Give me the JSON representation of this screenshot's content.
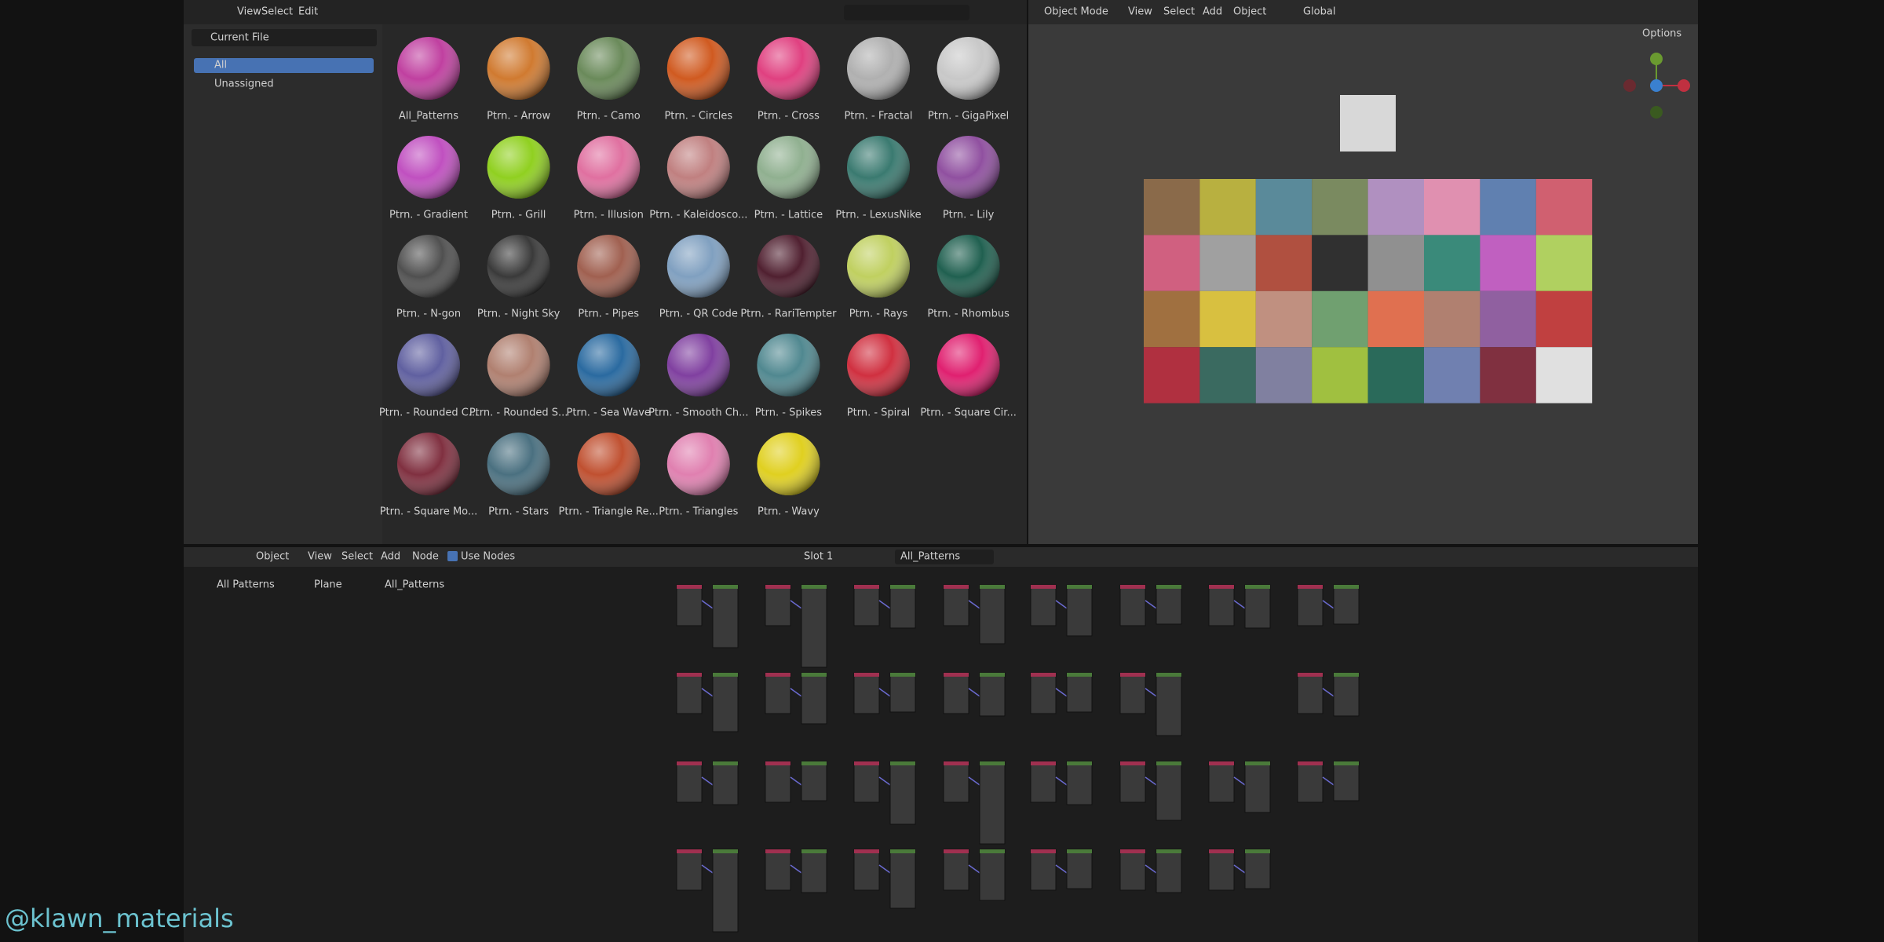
{
  "asset_browser": {
    "menus": [
      "View",
      "Select",
      "Edit"
    ],
    "library": "Current File",
    "catalogs": [
      "All",
      "Unassigned"
    ],
    "items": [
      {
        "label": "All_Patterns",
        "color": "#c040a0"
      },
      {
        "label": "Ptrn. - Arrow",
        "color": "#d07a30"
      },
      {
        "label": "Ptrn. - Camo",
        "color": "#6a8a5a"
      },
      {
        "label": "Ptrn. - Circles",
        "color": "#d05a20"
      },
      {
        "label": "Ptrn. - Cross",
        "color": "#e04080"
      },
      {
        "label": "Ptrn. - Fractal",
        "color": "#b0b0b0"
      },
      {
        "label": "Ptrn. - GigaPixel",
        "color": "#c8c8c8"
      },
      {
        "label": "Ptrn. - Gradient",
        "color": "#c050c0"
      },
      {
        "label": "Ptrn. - Grill",
        "color": "#90d020"
      },
      {
        "label": "Ptrn. - Illusion",
        "color": "#e070a0"
      },
      {
        "label": "Ptrn. - Kaleidosco...",
        "color": "#c08080"
      },
      {
        "label": "Ptrn. - Lattice",
        "color": "#90b090"
      },
      {
        "label": "Ptrn. - LexusNike",
        "color": "#3a7a70"
      },
      {
        "label": "Ptrn. - Lily",
        "color": "#9050a0"
      },
      {
        "label": "Ptrn. - N-gon",
        "color": "#505050"
      },
      {
        "label": "Ptrn. - Night Sky",
        "color": "#3a3a3a"
      },
      {
        "label": "Ptrn. - Pipes",
        "color": "#a06050"
      },
      {
        "label": "Ptrn. - QR Code",
        "color": "#80a0c0"
      },
      {
        "label": "Ptrn. - RariTempter",
        "color": "#502030"
      },
      {
        "label": "Ptrn. - Rays",
        "color": "#c0d060"
      },
      {
        "label": "Ptrn. - Rhombus",
        "color": "#206050"
      },
      {
        "label": "Ptrn. - Rounded C...",
        "color": "#6060a0"
      },
      {
        "label": "Ptrn. - Rounded S...",
        "color": "#b08070"
      },
      {
        "label": "Ptrn. - Sea Wave",
        "color": "#2a6aa0"
      },
      {
        "label": "Ptrn. - Smooth Ch...",
        "color": "#8040a0"
      },
      {
        "label": "Ptrn. - Spikes",
        "color": "#508890"
      },
      {
        "label": "Ptrn. - Spiral",
        "color": "#d03040"
      },
      {
        "label": "Ptrn. - Square Cir...",
        "color": "#e02070"
      },
      {
        "label": "Ptrn. - Square Mo...",
        "color": "#803040"
      },
      {
        "label": "Ptrn. - Stars",
        "color": "#4a7080"
      },
      {
        "label": "Ptrn. - Triangle Re...",
        "color": "#c05030"
      },
      {
        "label": "Ptrn. - Triangles",
        "color": "#e080b0"
      },
      {
        "label": "Ptrn. - Wavy",
        "color": "#e0d020"
      }
    ]
  },
  "viewport": {
    "mode": "Object Mode",
    "menus": [
      "View",
      "Select",
      "Add",
      "Object"
    ],
    "orientation": "Global",
    "options": "Options",
    "tiles": [
      "#8a6a4a",
      "#b8b040",
      "#5a8a9a",
      "#7a8a60",
      "#b090c0",
      "#e090b0",
      "#6080b0",
      "#d06070",
      "#d06080",
      "#a0a0a0",
      "#b05040",
      "#303030",
      "#909090",
      "#3a8a7a",
      "#c060c0",
      "#b0d060",
      "#a07040",
      "#d8c040",
      "#c09080",
      "#70a070",
      "#e07050",
      "#b08070",
      "#9060a0",
      "#c04040",
      "#b03040",
      "#3a6a60",
      "#8080a0",
      "#a0c040",
      "#2a6a5a",
      "#7080b0",
      "#803040",
      "#e0e0e0"
    ]
  },
  "node_editor": {
    "mode": "Object",
    "menus": [
      "View",
      "Select",
      "Add",
      "Node"
    ],
    "use_nodes": "Use Nodes",
    "slot": "Slot 1",
    "material": "All_Patterns",
    "breadcrumbs": [
      "All Patterns",
      "Plane",
      "All_Patterns"
    ]
  },
  "watermark": "@klawn_materials"
}
